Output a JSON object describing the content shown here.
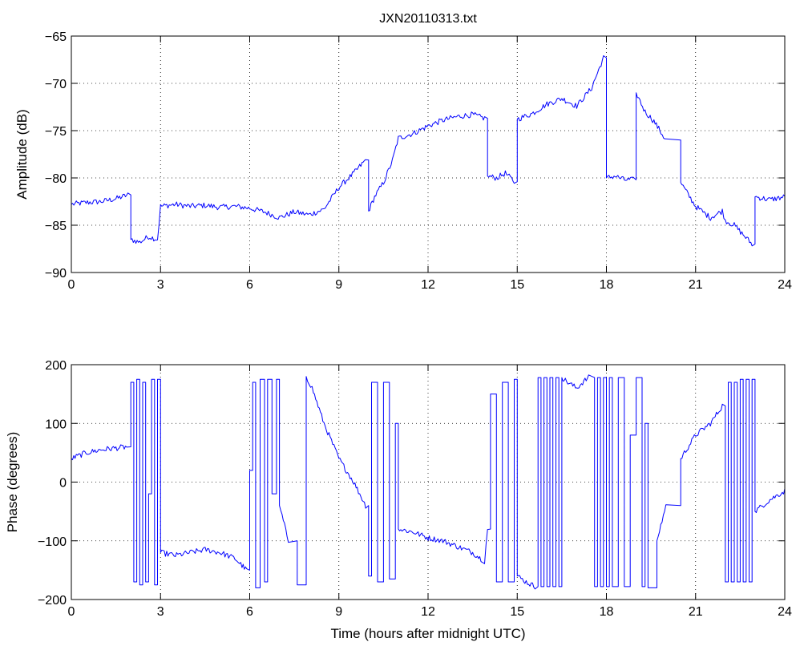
{
  "figure": {
    "title": "JXN20110313.txt"
  },
  "chart_data": [
    {
      "type": "line",
      "title": "JXN20110313.txt",
      "xlabel": "",
      "ylabel": "Amplitude (dB)",
      "xlim": [
        0,
        24
      ],
      "ylim": [
        -90,
        -65
      ],
      "xticks": [
        0,
        3,
        6,
        9,
        12,
        15,
        18,
        21,
        24
      ],
      "yticks": [
        -90,
        -85,
        -80,
        -75,
        -70,
        -65
      ],
      "grid": true,
      "line_color": "#0000ff",
      "series": [
        {
          "x": [
            0,
            0.5,
            1,
            1.5,
            1.9,
            2.0,
            2.3,
            2.6,
            2.9,
            3.0,
            3.5,
            4,
            4.5,
            5,
            5.5,
            6,
            6.5,
            7,
            7.5,
            8,
            8.5,
            9,
            9.5,
            9.9,
            10.0,
            10.2,
            10.5,
            10.8,
            11.0,
            11.5,
            12,
            12.5,
            13,
            13.5,
            13.9,
            14.0,
            14.3,
            14.6,
            14.9,
            15.0,
            15.5,
            16,
            16.5,
            17,
            17.5,
            17.9,
            18.0,
            18.3,
            18.6,
            18.9,
            19.0,
            19.3,
            19.6,
            20,
            20.5,
            21,
            21.5,
            21.9,
            22.0,
            22.3,
            22.6,
            22.9,
            23.0,
            23.5,
            24
          ],
          "y": [
            -82.8,
            -82.6,
            -82.5,
            -82.2,
            -81.8,
            -86.5,
            -86.8,
            -86.2,
            -86.5,
            -83,
            -82.8,
            -83,
            -82.9,
            -83.1,
            -83.0,
            -83.2,
            -83.6,
            -84.2,
            -83.6,
            -83.9,
            -83.3,
            -81.0,
            -79.5,
            -78.1,
            -83.5,
            -82.0,
            -80.5,
            -78.2,
            -75.8,
            -75.3,
            -74.5,
            -73.9,
            -73.5,
            -73.3,
            -73.7,
            -79.8,
            -80.0,
            -79.5,
            -80.4,
            -73.8,
            -73.2,
            -72.2,
            -71.6,
            -72.4,
            -70.5,
            -67.3,
            -80.0,
            -79.8,
            -80.2,
            -80.2,
            -71.0,
            -73.0,
            -74.0,
            -76.0,
            -80.5,
            -83.0,
            -84.2,
            -83.5,
            -84.5,
            -85.0,
            -86.0,
            -87.0,
            -82.0,
            -82.3,
            -82.0
          ]
        }
      ]
    },
    {
      "type": "line",
      "title": "",
      "xlabel": "Time (hours after midnight UTC)",
      "ylabel": "Phase (degrees)",
      "xlim": [
        0,
        24
      ],
      "ylim": [
        -200,
        200
      ],
      "xticks": [
        0,
        3,
        6,
        9,
        12,
        15,
        18,
        21,
        24
      ],
      "yticks": [
        -200,
        -100,
        0,
        100,
        200
      ],
      "grid": true,
      "line_color": "#0000ff",
      "series": [
        {
          "x": [
            0,
            0.5,
            1,
            1.5,
            1.9,
            2.0,
            2.1,
            2.2,
            2.3,
            2.4,
            2.5,
            2.6,
            2.7,
            2.8,
            2.9,
            3.0,
            3.5,
            4,
            4.5,
            5,
            5.5,
            5.9,
            6.0,
            6.1,
            6.2,
            6.35,
            6.5,
            6.6,
            6.75,
            6.9,
            7.0,
            7.3,
            7.6,
            7.9,
            8.0,
            8.1,
            8.5,
            9,
            9.5,
            9.9,
            10.0,
            10.1,
            10.3,
            10.5,
            10.7,
            10.9,
            11.0,
            11.5,
            12,
            12.5,
            13,
            13.5,
            13.9,
            14.0,
            14.1,
            14.3,
            14.5,
            14.7,
            14.9,
            15.0,
            15.3,
            15.6,
            15.7,
            15.8,
            15.9,
            16.0,
            16.1,
            16.2,
            16.3,
            16.4,
            16.5,
            16.7,
            17.0,
            17.2,
            17.4,
            17.6,
            17.7,
            17.8,
            17.9,
            18.0,
            18.1,
            18.2,
            18.4,
            18.6,
            18.8,
            19.0,
            19.2,
            19.3,
            19.4,
            19.7,
            20,
            20.5,
            21,
            21.5,
            21.9,
            22.0,
            22.1,
            22.2,
            22.3,
            22.4,
            22.5,
            22.6,
            22.7,
            22.8,
            22.9,
            23.0,
            23.5,
            24
          ],
          "y": [
            40,
            50,
            55,
            58,
            60,
            170,
            -170,
            175,
            -175,
            170,
            -170,
            -20,
            175,
            -175,
            175,
            -120,
            -125,
            -120,
            -115,
            -120,
            -130,
            -150,
            20,
            170,
            -180,
            175,
            -170,
            175,
            -20,
            175,
            -40,
            -100,
            -175,
            180,
            170,
            160,
            100,
            40,
            0,
            -40,
            -160,
            170,
            -170,
            170,
            -165,
            100,
            -80,
            -85,
            -95,
            -100,
            -110,
            -120,
            -135,
            -80,
            150,
            -170,
            170,
            -170,
            175,
            -160,
            -170,
            -178,
            178,
            -178,
            178,
            -178,
            178,
            -178,
            178,
            -178,
            178,
            170,
            160,
            170,
            178,
            -178,
            178,
            -178,
            178,
            -178,
            178,
            -178,
            178,
            -178,
            80,
            178,
            -178,
            100,
            -180,
            -100,
            -40,
            40,
            80,
            100,
            130,
            -170,
            170,
            -170,
            170,
            -170,
            175,
            -170,
            175,
            -170,
            175,
            -50,
            -30,
            -15
          ]
        }
      ]
    }
  ]
}
